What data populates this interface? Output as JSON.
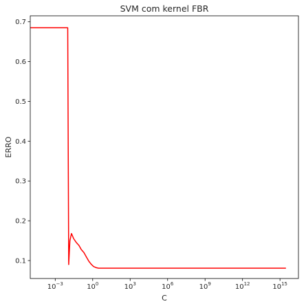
{
  "chart_data": {
    "type": "line",
    "title": "SVM com kernel FBR",
    "xlabel": "C",
    "ylabel": "ERRO",
    "x_scale": "log10",
    "xlim": [
      1e-05,
      3e+16
    ],
    "ylim": [
      0.055,
      0.715
    ],
    "grid": false,
    "x_tick_labels": [
      {
        "base": "10",
        "exp": "−3",
        "value": 0.001
      },
      {
        "base": "10",
        "exp": "0",
        "value": 1
      },
      {
        "base": "10",
        "exp": "3",
        "value": 1000
      },
      {
        "base": "10",
        "exp": "6",
        "value": 1000000
      },
      {
        "base": "10",
        "exp": "9",
        "value": 1000000000
      },
      {
        "base": "10",
        "exp": "12",
        "value": 1000000000000
      },
      {
        "base": "10",
        "exp": "15",
        "value": 1000000000000000
      }
    ],
    "y_tick_labels": [
      "0.1",
      "0.2",
      "0.3",
      "0.4",
      "0.5",
      "0.6",
      "0.7"
    ],
    "y_tick_values": [
      0.1,
      0.2,
      0.3,
      0.4,
      0.5,
      0.6,
      0.7
    ],
    "series": [
      {
        "color": "#ff0000",
        "x": [
          1e-05,
          0.0001,
          0.001,
          0.01,
          0.012,
          0.015,
          0.02,
          0.03,
          0.05,
          0.08,
          0.12,
          0.2,
          0.3,
          0.5,
          0.8,
          1.2,
          2,
          3,
          5,
          10,
          100,
          1000,
          1000000.0,
          1000000000.0,
          1000000000000.0,
          1000000000000000.0,
          3000000000000000.0
        ],
        "y": [
          0.685,
          0.685,
          0.685,
          0.685,
          0.09,
          0.15,
          0.168,
          0.155,
          0.145,
          0.138,
          0.128,
          0.12,
          0.11,
          0.098,
          0.09,
          0.085,
          0.082,
          0.081,
          0.081,
          0.081,
          0.081,
          0.081,
          0.081,
          0.081,
          0.081,
          0.081,
          0.081
        ]
      }
    ]
  }
}
